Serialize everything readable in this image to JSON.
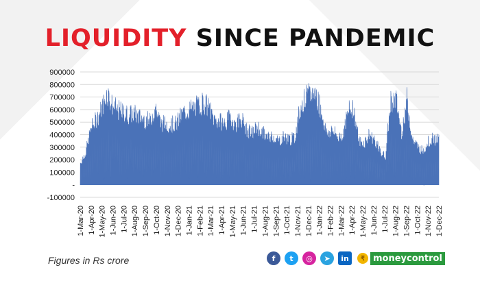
{
  "title": {
    "part1": "LIQUIDITY",
    "part2": "SINCE PANDEMIC"
  },
  "footnote": "Figures in Rs crore",
  "social": {
    "icons": [
      "facebook-icon",
      "twitter-icon",
      "instagram-icon",
      "telegram-icon",
      "linkedin-icon"
    ],
    "glyphs": [
      "f",
      "t",
      "◎",
      "➤",
      "in"
    ],
    "colors": [
      "#3b5998",
      "#1da1f2",
      "#d6249f",
      "#2aa3e0",
      "#0a66c2"
    ]
  },
  "brand": {
    "coin_glyph": "₹",
    "name": "moneycontrol"
  },
  "colors": {
    "series": "#4a72b8",
    "title_red": "#e3202a",
    "grid": "#d9d9d9"
  },
  "chart_data": {
    "type": "area",
    "title": "LIQUIDITY SINCE PANDEMIC",
    "ylim": [
      -100000,
      900000
    ],
    "yticks": [
      -100000,
      0,
      100000,
      200000,
      300000,
      400000,
      500000,
      600000,
      700000,
      800000,
      900000
    ],
    "ytick_labels": [
      "-100000",
      "-",
      "100000",
      "200000",
      "300000",
      "400000",
      "500000",
      "600000",
      "700000",
      "800000",
      "900000"
    ],
    "x_tick_labels": [
      "1-Mar-20",
      "1-Apr-20",
      "1-May-20",
      "1-Jun-20",
      "1-Jul-20",
      "1-Aug-20",
      "1-Sep-20",
      "1-Oct-20",
      "1-Nov-20",
      "1-Dec-20",
      "1-Jan-21",
      "1-Feb-21",
      "1-Mar-21",
      "1-Apr-21",
      "1-May-21",
      "1-Jun-21",
      "1-Jul-21",
      "1-Aug-21",
      "1-Sep-21",
      "1-Oct-21",
      "1-Nov-21",
      "1-Dec-21",
      "1-Jan-22",
      "1-Feb-22",
      "1-Mar-22",
      "1-Apr-22",
      "1-May-22",
      "1-Jun-22",
      "1-Jul-22",
      "1-Aug-22",
      "1-Sep-22",
      "1-Oct-22",
      "1-Nov-22",
      "1-Dec-22"
    ],
    "grid": true,
    "legend": "none",
    "series": [
      {
        "x": [
          "1-Mar-20",
          "16-Mar-20",
          "1-Apr-20",
          "16-Apr-20",
          "1-May-20",
          "16-May-20",
          "1-Jun-20",
          "16-Jun-20",
          "1-Jul-20",
          "16-Jul-20",
          "1-Aug-20",
          "16-Aug-20",
          "1-Sep-20",
          "16-Sep-20",
          "1-Oct-20",
          "16-Oct-20",
          "1-Nov-20",
          "16-Nov-20",
          "1-Dec-20",
          "16-Dec-20",
          "1-Jan-21",
          "16-Jan-21",
          "1-Feb-21",
          "16-Feb-21",
          "1-Mar-21",
          "16-Mar-21",
          "1-Apr-21",
          "16-Apr-21",
          "1-May-21",
          "16-May-21",
          "1-Jun-21",
          "16-Jun-21",
          "1-Jul-21",
          "16-Jul-21",
          "1-Aug-21",
          "16-Aug-21",
          "1-Sep-21",
          "16-Sep-21",
          "1-Oct-21",
          "16-Oct-21",
          "1-Nov-21",
          "16-Nov-21",
          "1-Dec-21",
          "16-Dec-21",
          "1-Jan-22",
          "16-Jan-22",
          "1-Feb-22",
          "16-Feb-22",
          "1-Mar-22",
          "16-Mar-22",
          "1-Apr-22",
          "16-Apr-22",
          "1-May-22",
          "16-May-22",
          "1-Jun-22",
          "16-Jun-22",
          "1-Jul-22",
          "16-Jul-22",
          "1-Aug-22",
          "16-Aug-22",
          "1-Sep-22",
          "16-Sep-22",
          "1-Oct-22",
          "16-Oct-22",
          "1-Nov-22",
          "16-Nov-22",
          "1-Dec-22",
          "16-Dec-22"
        ],
        "y": [
          200000,
          300000,
          520000,
          600000,
          700000,
          850000,
          720000,
          680000,
          660000,
          640000,
          650000,
          620000,
          600000,
          580000,
          720000,
          560000,
          560000,
          550000,
          560000,
          650000,
          680000,
          700000,
          720000,
          760000,
          700000,
          600000,
          580000,
          560000,
          620000,
          550000,
          620000,
          500000,
          470000,
          530000,
          480000,
          430000,
          450000,
          400000,
          440000,
          420000,
          420000,
          700000,
          790000,
          830000,
          840000,
          680000,
          470000,
          500000,
          440000,
          460000,
          660000,
          720000,
          400000,
          380000,
          460000,
          410000,
          300000,
          260000,
          780000,
          770000,
          480000,
          780000,
          420000,
          350000,
          310000,
          400000,
          420000,
          400000
        ]
      }
    ]
  }
}
